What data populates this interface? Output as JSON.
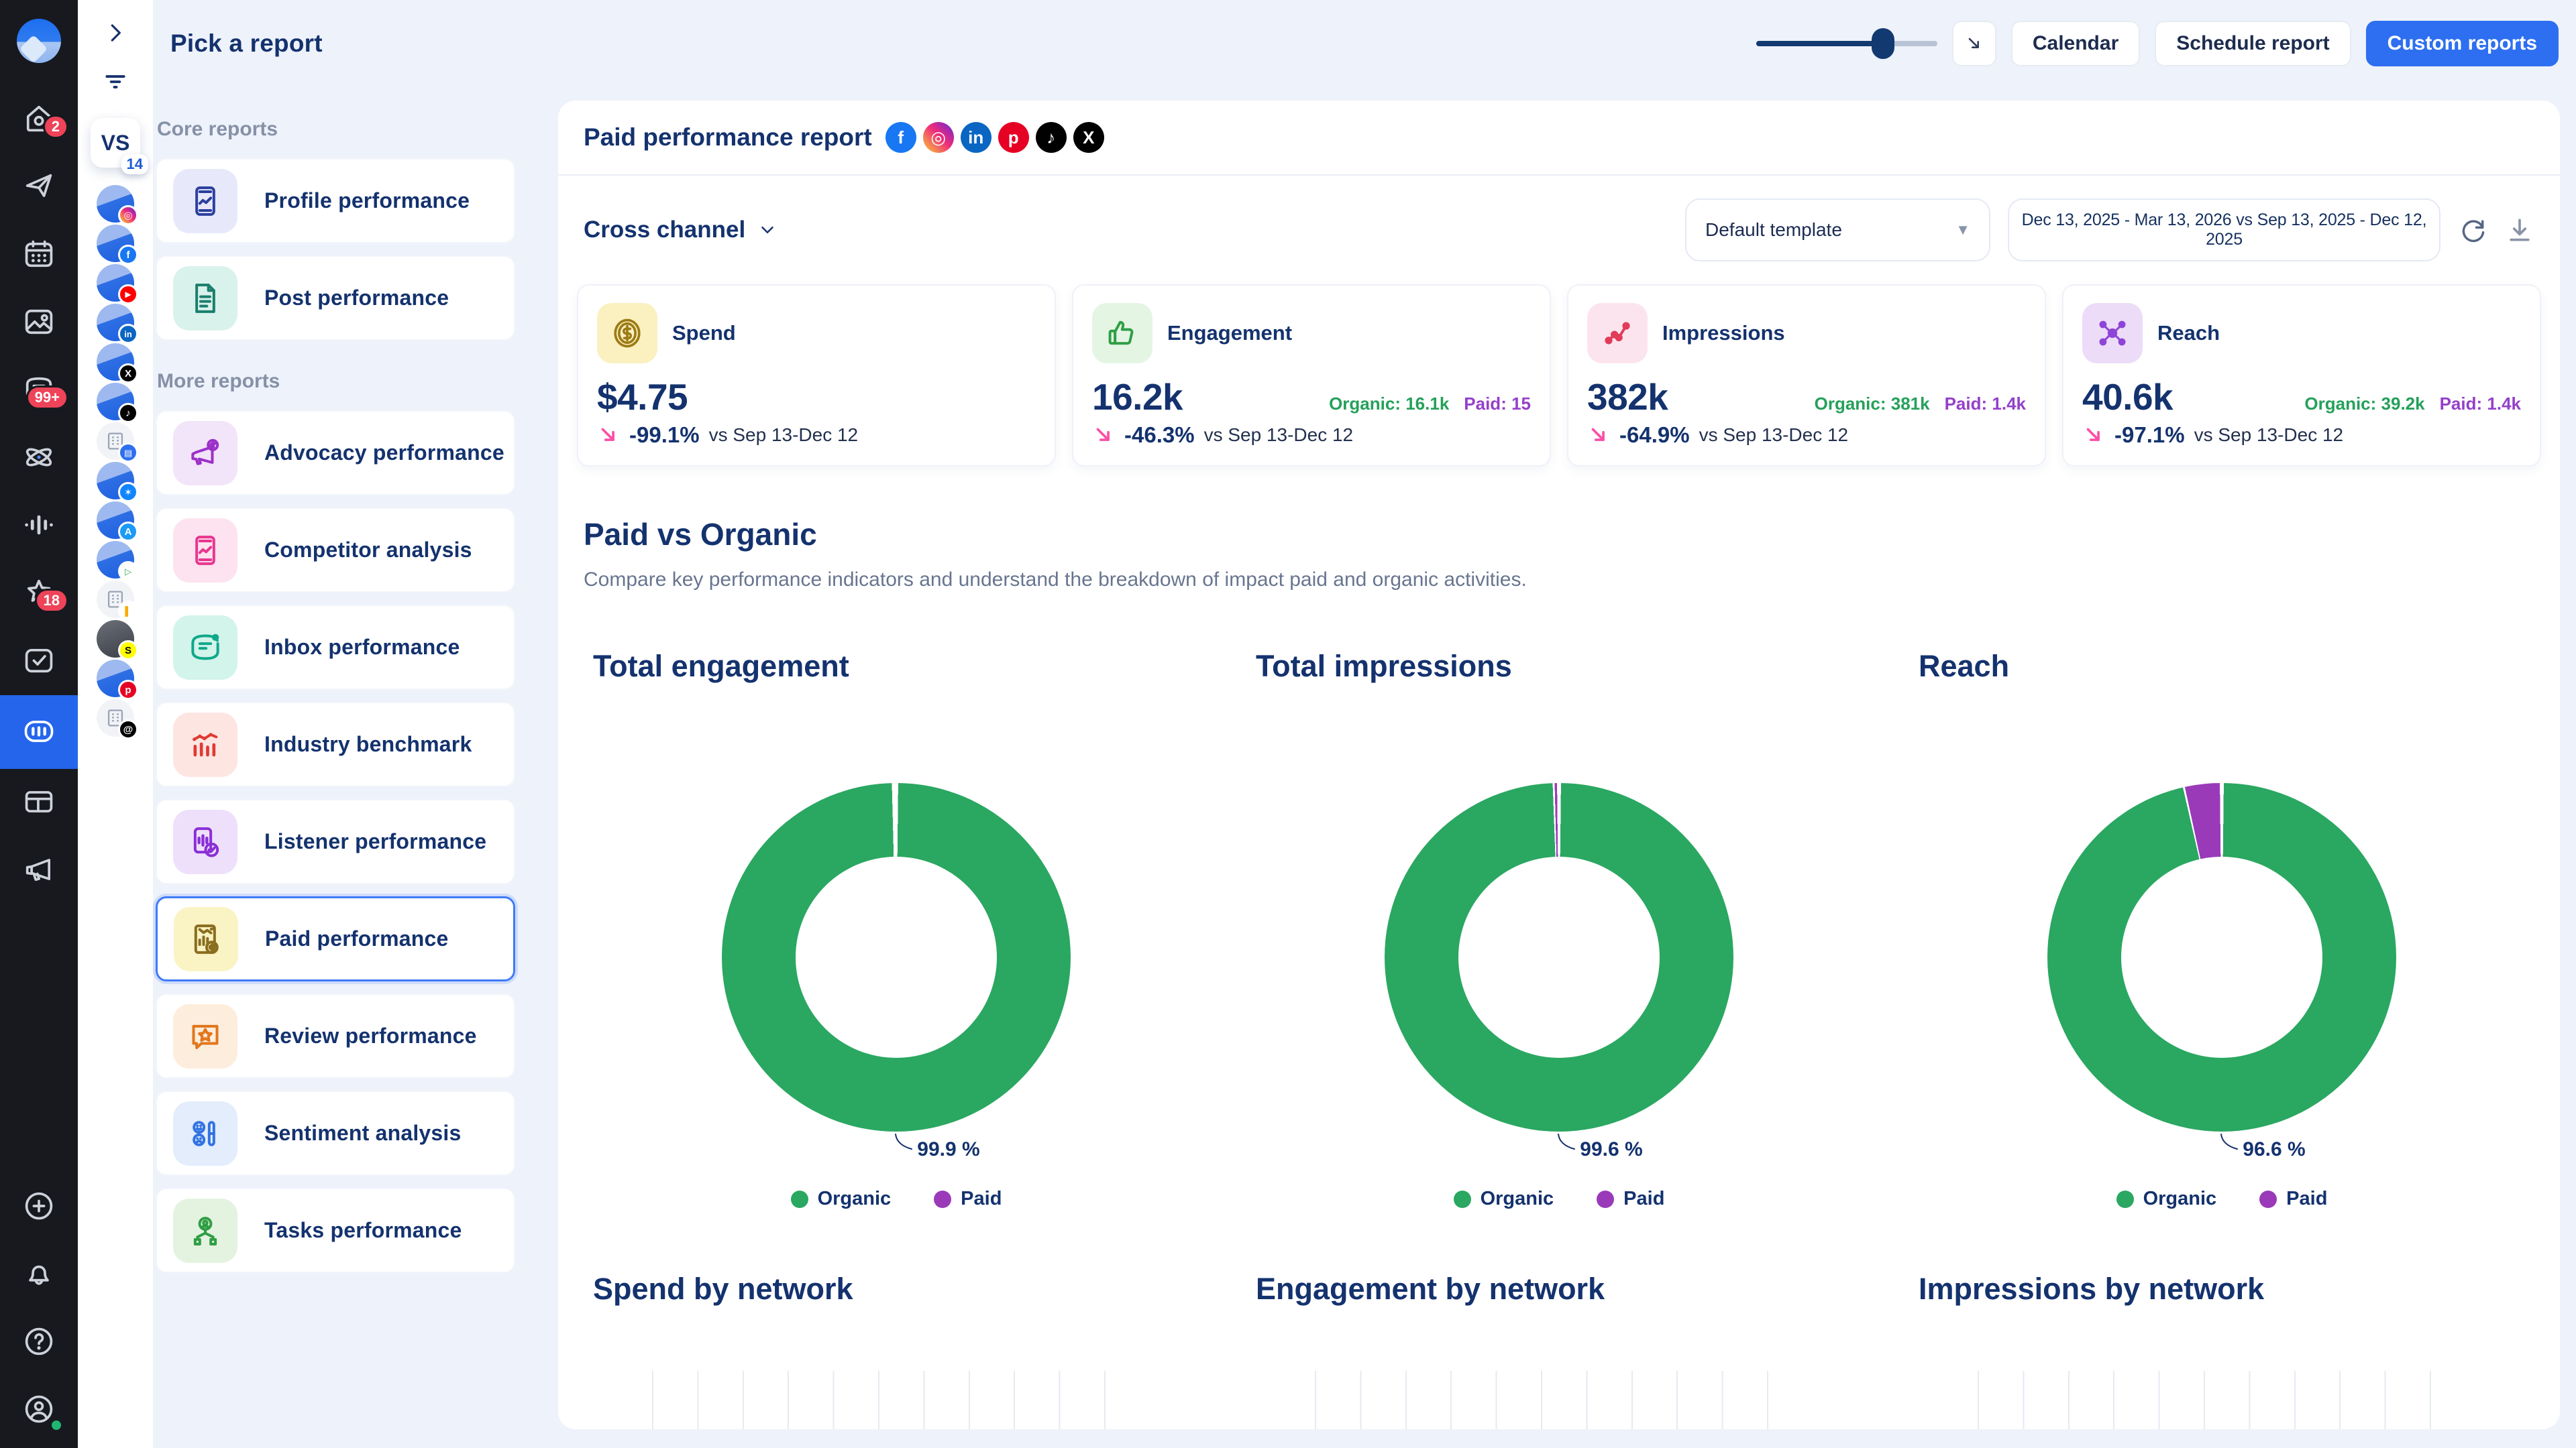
{
  "topbar": {
    "title": "Pick a report",
    "slider_value": 70,
    "buttons": {
      "calendar": "Calendar",
      "schedule": "Schedule report",
      "custom": "Custom reports"
    }
  },
  "sidebar": {
    "items": [
      {
        "icon": "home",
        "badge": "2"
      },
      {
        "icon": "send"
      },
      {
        "icon": "calendar"
      },
      {
        "icon": "image"
      },
      {
        "icon": "inbox",
        "badge": "99+"
      },
      {
        "icon": "atom"
      },
      {
        "icon": "audio-wave"
      },
      {
        "icon": "star",
        "badge": "18"
      },
      {
        "icon": "tasks"
      },
      {
        "icon": "reports",
        "active": true
      },
      {
        "icon": "board"
      },
      {
        "icon": "megaphone"
      }
    ],
    "bottom_items": [
      {
        "icon": "plus"
      },
      {
        "icon": "bell"
      },
      {
        "icon": "help"
      },
      {
        "icon": "user",
        "status": "online"
      }
    ]
  },
  "profile_rail": {
    "group_label": "VS",
    "count": "14",
    "profiles": [
      "instagram",
      "facebook",
      "youtube",
      "linkedin",
      "x",
      "tiktok",
      "google-business",
      "bluesky",
      "app-store",
      "google-play",
      "google-analytics",
      "snapchat",
      "pinterest",
      "threads"
    ]
  },
  "reports_nav": {
    "sections": [
      {
        "label": "Core reports",
        "items": [
          {
            "label": "Profile performance",
            "icon": "profile-performance",
            "tile_bg": "#e7e9fb",
            "tile_color": "#2b3f9e"
          },
          {
            "label": "Post performance",
            "icon": "post-performance",
            "tile_bg": "#d9f2ec",
            "tile_color": "#1b7f6c"
          }
        ]
      },
      {
        "label": "More reports",
        "items": [
          {
            "label": "Advocacy performance",
            "icon": "advocacy-performance",
            "tile_bg": "#f2e4f9",
            "tile_color": "#9b30c9"
          },
          {
            "label": "Competitor analysis",
            "icon": "competitor-analysis",
            "tile_bg": "#fde3ef",
            "tile_color": "#e8368f"
          },
          {
            "label": "Inbox performance",
            "icon": "inbox-performance",
            "tile_bg": "#d2f4eb",
            "tile_color": "#0fa88a"
          },
          {
            "label": "Industry benchmark",
            "icon": "industry-benchmark",
            "tile_bg": "#fde5e2",
            "tile_color": "#e03a31"
          },
          {
            "label": "Listener performance",
            "icon": "listener-performance",
            "tile_bg": "#eee0fb",
            "tile_color": "#8b2fd6"
          },
          {
            "label": "Paid performance",
            "icon": "paid-performance",
            "tile_bg": "#faf3c3",
            "tile_color": "#8a6d1f",
            "selected": true
          },
          {
            "label": "Review performance",
            "icon": "review-performance",
            "tile_bg": "#fdeddd",
            "tile_color": "#e2761b"
          },
          {
            "label": "Sentiment analysis",
            "icon": "sentiment-analysis",
            "tile_bg": "#e3edfc",
            "tile_color": "#3173e2"
          },
          {
            "label": "Tasks performance",
            "icon": "tasks-performance",
            "tile_bg": "#e4f3e0",
            "tile_color": "#2f9e44"
          }
        ]
      }
    ]
  },
  "report": {
    "title": "Paid performance report",
    "networks": [
      "facebook",
      "instagram",
      "linkedin",
      "pinterest",
      "tiktok",
      "x"
    ],
    "channel": "Cross channel",
    "template": "Default template",
    "date_range": "Dec 13, 2025 - Mar 13, 2026 vs Sep 13, 2025 - Dec 12, 2025"
  },
  "kpis": [
    {
      "label": "Spend",
      "icon": "dollar-coin",
      "tile_bg": "#faf0c0",
      "tile_color": "#9c7b16",
      "value": "$4.75",
      "delta": "-99.1%",
      "compare": "vs Sep 13-Dec 12"
    },
    {
      "label": "Engagement",
      "icon": "thumbs-up",
      "tile_bg": "#e4f5e4",
      "tile_color": "#2f9e44",
      "value": "16.2k",
      "organic": "Organic: 16.1k",
      "paid": "Paid: 15",
      "delta": "-46.3%",
      "compare": "vs Sep 13-Dec 12"
    },
    {
      "label": "Impressions",
      "icon": "scatter-line",
      "tile_bg": "#fce4ee",
      "tile_color": "#e23b5a",
      "value": "382k",
      "organic": "Organic: 381k",
      "paid": "Paid: 1.4k",
      "delta": "-64.9%",
      "compare": "vs Sep 13-Dec 12"
    },
    {
      "label": "Reach",
      "icon": "network-share",
      "tile_bg": "#ecdcf8",
      "tile_color": "#8e44d8",
      "value": "40.6k",
      "organic": "Organic: 39.2k",
      "paid": "Paid: 1.4k",
      "delta": "-97.1%",
      "compare": "vs Sep 13-Dec 12"
    }
  ],
  "paid_vs_organic": {
    "title": "Paid vs Organic",
    "description": "Compare key performance indicators and understand the breakdown of impact paid and organic activities."
  },
  "chart_data": [
    {
      "type": "pie",
      "title": "Total engagement",
      "categories": [
        "Organic",
        "Paid"
      ],
      "values": [
        99.9,
        0.1
      ],
      "label": "99.9 %",
      "colors": [
        "#2aa761",
        "#9a3ab9"
      ],
      "legend_position": "bottom"
    },
    {
      "type": "pie",
      "title": "Total impressions",
      "categories": [
        "Organic",
        "Paid"
      ],
      "values": [
        99.6,
        0.4
      ],
      "label": "99.6 %",
      "colors": [
        "#2aa761",
        "#9a3ab9"
      ],
      "legend_position": "bottom"
    },
    {
      "type": "pie",
      "title": "Reach",
      "categories": [
        "Organic",
        "Paid"
      ],
      "values": [
        96.6,
        3.4
      ],
      "label": "96.6 %",
      "colors": [
        "#2aa761",
        "#9a3ab9"
      ],
      "legend_position": "bottom"
    },
    {
      "type": "bar",
      "title": "Spend by network",
      "categories": [],
      "values": [],
      "note_visible_portion": "gridlines only, chart cut off by viewport"
    },
    {
      "type": "bar",
      "title": "Engagement by network",
      "categories": [],
      "values": []
    },
    {
      "type": "bar",
      "title": "Impressions by network",
      "categories": [],
      "values": []
    }
  ],
  "colors": {
    "accent_blue": "#2d6ff0",
    "navy": "#14326e",
    "organic_green": "#2aa761",
    "paid_purple": "#9a3ab9",
    "delta_pink": "#fb4fa6",
    "badge_red": "#ee4358",
    "sidebar_dark": "#17191f",
    "active_nav_blue": "#2465ec"
  }
}
